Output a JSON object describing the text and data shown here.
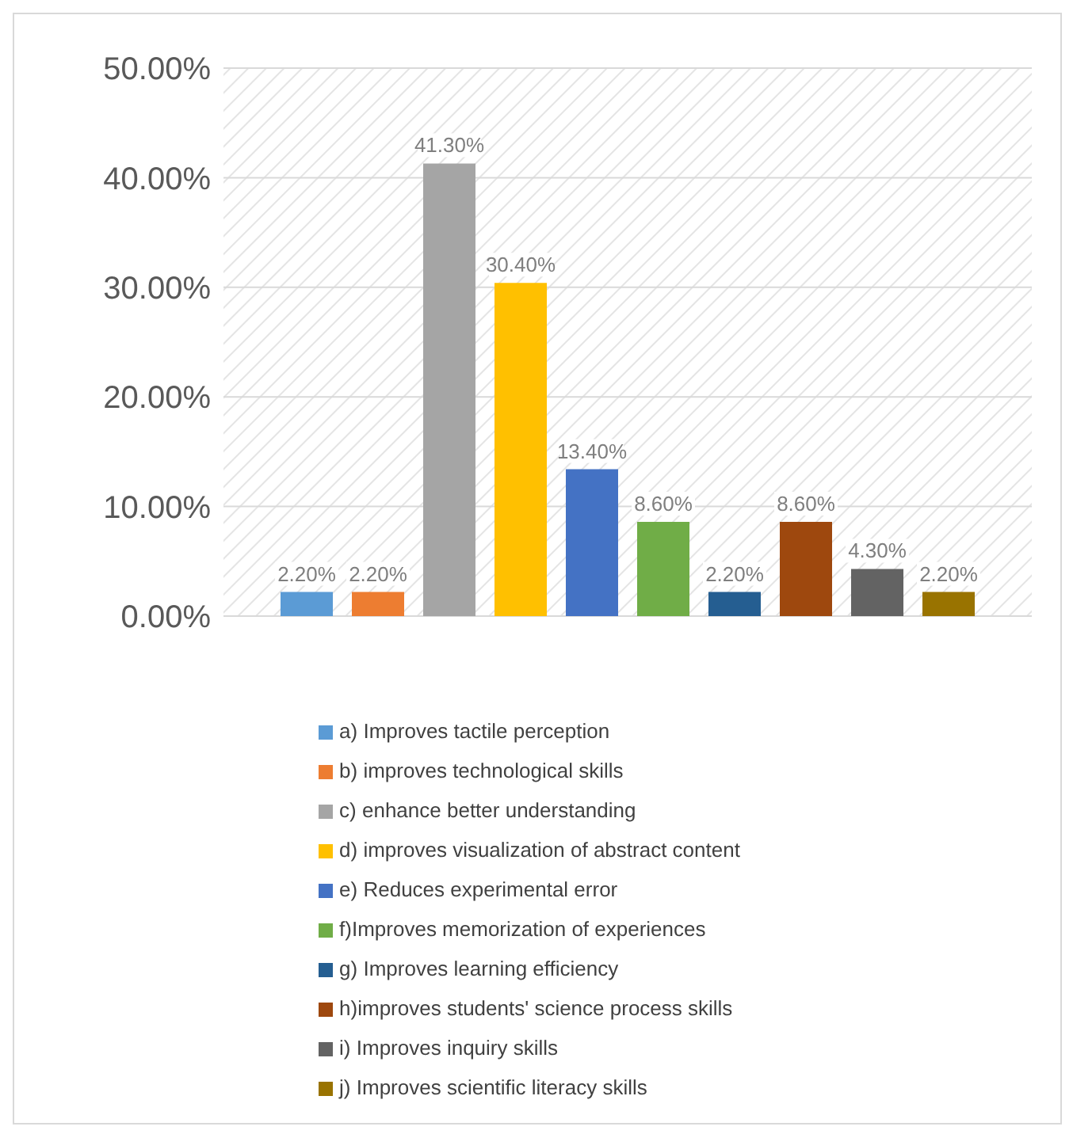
{
  "chart_data": {
    "type": "bar",
    "categories": [
      null
    ],
    "series": [
      {
        "name": "a) Improves tactile perception",
        "color": "#5b9bd5",
        "values": [
          2.2
        ],
        "value_labels": [
          "2.20%"
        ]
      },
      {
        "name": "b) improves technological skills",
        "color": "#ed7d31",
        "values": [
          2.2
        ],
        "value_labels": [
          "2.20%"
        ]
      },
      {
        "name": "c) enhance better understanding",
        "color": "#a5a5a5",
        "values": [
          41.3
        ],
        "value_labels": [
          "41.30%"
        ]
      },
      {
        "name": "d) improves visualization of abstract content",
        "color": "#ffc000",
        "values": [
          30.4
        ],
        "value_labels": [
          "30.40%"
        ]
      },
      {
        "name": "e) Reduces experimental error",
        "color": "#4472c4",
        "values": [
          13.4
        ],
        "value_labels": [
          "13.40%"
        ]
      },
      {
        "name": "f)Improves memorization of experiences",
        "color": "#70ad47",
        "values": [
          8.6
        ],
        "value_labels": [
          "8.60%"
        ]
      },
      {
        "name": "g) Improves learning efficiency",
        "color": "#255e91",
        "values": [
          2.2
        ],
        "value_labels": [
          "2.20%"
        ]
      },
      {
        "name": "h)improves students' science process skills",
        "color": "#9e480e",
        "values": [
          8.6
        ],
        "value_labels": [
          "8.60%"
        ]
      },
      {
        "name": "i) Improves inquiry skills",
        "color": "#636363",
        "values": [
          4.3
        ],
        "value_labels": [
          "4.30%"
        ]
      },
      {
        "name": "j) Improves scientific literacy skills",
        "color": "#997300",
        "values": [
          2.2
        ],
        "value_labels": [
          "2.20%"
        ]
      }
    ],
    "ylim": [
      0,
      50
    ],
    "yticks": [
      {
        "value": 0,
        "label": "0.00%"
      },
      {
        "value": 10,
        "label": "10.00%"
      },
      {
        "value": 20,
        "label": "20.00%"
      },
      {
        "value": 30,
        "label": "30.00%"
      },
      {
        "value": 40,
        "label": "40.00%"
      },
      {
        "value": 50,
        "label": "50.00%"
      }
    ],
    "grid": "y",
    "legend": "bottom",
    "tick_labels": "y"
  }
}
